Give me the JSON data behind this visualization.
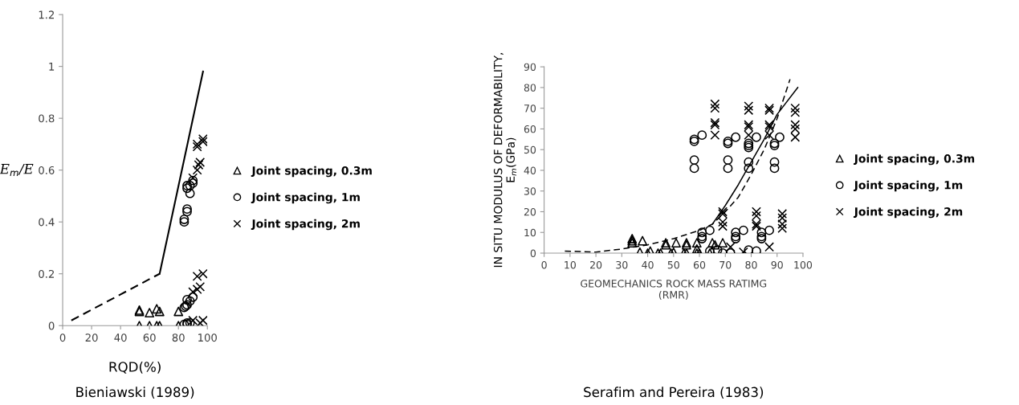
{
  "chart_data": [
    {
      "type": "scatter",
      "xlabel": "RQD(%)",
      "ylabel": "E$_{m}$/E",
      "annotations": [
        "Bieniawski (1989)"
      ],
      "xlim": [
        0,
        100
      ],
      "xticks": [
        0,
        20,
        40,
        60,
        80,
        100
      ],
      "ylim": [
        0,
        1.2
      ],
      "yticks": [
        0,
        0.2,
        0.4,
        0.6,
        0.8,
        1,
        1.2
      ],
      "grid": false,
      "legend": "right",
      "series": [
        {
          "name": "Joint spacing, 0.3m",
          "color": "#000000",
          "marker": "triangle",
          "x": [
            53,
            53,
            53,
            60,
            60,
            65,
            65,
            67,
            67,
            80,
            80
          ],
          "values": [
            0.06,
            0.055,
            0.0,
            0.05,
            0.0,
            0.065,
            0.0,
            0.055,
            0.0,
            0.055,
            0.0
          ]
        },
        {
          "name": "Joint spacing, 1m",
          "color": "#000000",
          "marker": "circle",
          "x": [
            84,
            84,
            86,
            86,
            86,
            86,
            88,
            88,
            90,
            90,
            84,
            85,
            86,
            86,
            88,
            90,
            84,
            86,
            86,
            88
          ],
          "values": [
            0.41,
            0.4,
            0.53,
            0.54,
            0.44,
            0.45,
            0.51,
            0.54,
            0.55,
            0.56,
            0.07,
            0.075,
            0.1,
            0.08,
            0.095,
            0.11,
            0.005,
            0.005,
            0.01,
            0.01
          ]
        },
        {
          "name": "Joint spacing, 2m",
          "color": "#000000",
          "marker": "cross",
          "x": [
            90,
            93,
            93,
            93,
            94,
            95,
            97,
            97,
            90,
            93,
            93,
            95,
            97,
            90,
            95,
            97
          ],
          "values": [
            0.57,
            0.6,
            0.69,
            0.7,
            0.62,
            0.63,
            0.71,
            0.72,
            0.13,
            0.14,
            0.19,
            0.15,
            0.2,
            0.02,
            0.01,
            0.02
          ]
        },
        {
          "type": "line",
          "color": "#000000",
          "line_style": "dashed",
          "marker": "none",
          "x": [
            6,
            67
          ],
          "values": [
            0.02,
            0.2
          ]
        },
        {
          "type": "line",
          "color": "#000000",
          "line_style": "solid",
          "marker": "none",
          "x": [
            67,
            97
          ],
          "values": [
            0.2,
            0.98
          ]
        }
      ]
    },
    {
      "type": "scatter",
      "xlabel": "GEOMECHANICS ROCK MASS RATIMG\n(RMR)",
      "ylabel": "IN SITU MODULUS OF DEFORMABILITY,\nE$_{m}$(GPa)",
      "annotations": [
        "Serafim and Pereira (1983)"
      ],
      "xlim": [
        0,
        100
      ],
      "xticks": [
        0,
        10,
        20,
        30,
        40,
        50,
        60,
        70,
        80,
        90,
        100
      ],
      "ylim": [
        0,
        90
      ],
      "yticks": [
        0,
        10,
        20,
        30,
        40,
        50,
        60,
        70,
        80,
        90
      ],
      "grid": false,
      "legend": "right",
      "series": [
        {
          "name": "Joint spacing, 0.3m",
          "color": "#000000",
          "marker": "triangle",
          "x": [
            34,
            34,
            34,
            37,
            38,
            40,
            41,
            44,
            45,
            47,
            47,
            49,
            50,
            51,
            54,
            55,
            55,
            55,
            59,
            59,
            59,
            60,
            64,
            65,
            66,
            69
          ],
          "values": [
            7,
            6,
            5,
            0.5,
            6,
            0,
            1,
            0,
            0,
            5,
            4,
            0,
            0.5,
            5,
            0,
            5,
            4,
            0,
            5,
            2,
            0,
            0,
            0,
            5,
            4,
            5
          ]
        },
        {
          "name": "Joint spacing, 1m",
          "color": "#000000",
          "marker": "circle",
          "x": [
            58,
            58,
            58,
            58,
            61,
            61,
            61,
            61,
            64,
            64,
            67,
            69,
            71,
            71,
            71,
            71,
            72,
            74,
            74,
            74,
            74,
            77,
            79,
            79,
            79,
            79,
            79,
            79,
            82,
            82,
            84,
            84,
            84,
            87,
            89,
            89,
            89,
            89,
            91
          ],
          "values": [
            55,
            54,
            45,
            41,
            57,
            10,
            8,
            7,
            11,
            1,
            1.5,
            0,
            54,
            53,
            45,
            41,
            0,
            56,
            10,
            8,
            7,
            11,
            53,
            52,
            51,
            44,
            41,
            1.5,
            56,
            1,
            10,
            8,
            7,
            11,
            53,
            52,
            44,
            41,
            56
          ]
        },
        {
          "name": "Joint spacing, 2m",
          "color": "#000000",
          "marker": "cross",
          "x": [
            66,
            66,
            66,
            66,
            66,
            69,
            69,
            69,
            69,
            72,
            77,
            79,
            79,
            79,
            79,
            79,
            82,
            82,
            82,
            82,
            87,
            87,
            87,
            87,
            87,
            87,
            92,
            92,
            92,
            92,
            97,
            97,
            97,
            97,
            97
          ],
          "values": [
            72,
            70,
            63,
            62,
            57,
            20,
            19,
            15,
            13,
            3,
            0.5,
            71,
            69,
            62,
            61,
            57,
            20,
            18,
            14,
            13,
            70,
            69,
            62,
            61,
            57,
            3,
            19,
            17,
            14,
            12,
            70,
            68,
            62,
            60,
            56
          ]
        },
        {
          "type": "line",
          "color": "#000000",
          "line_style": "dashed",
          "marker": "none",
          "x": [
            8,
            20,
            30,
            40,
            50,
            60,
            65,
            70,
            75,
            80,
            85,
            90,
            95
          ],
          "values": [
            1,
            0.5,
            2,
            4,
            7,
            11,
            14,
            20,
            27,
            38,
            50,
            65,
            84
          ]
        },
        {
          "type": "line",
          "color": "#000000",
          "line_style": "solid",
          "marker": "none",
          "x": [
            65,
            70,
            75,
            80,
            85,
            90,
            98
          ],
          "values": [
            14,
            23,
            33,
            44,
            55,
            67,
            80
          ]
        }
      ]
    }
  ]
}
